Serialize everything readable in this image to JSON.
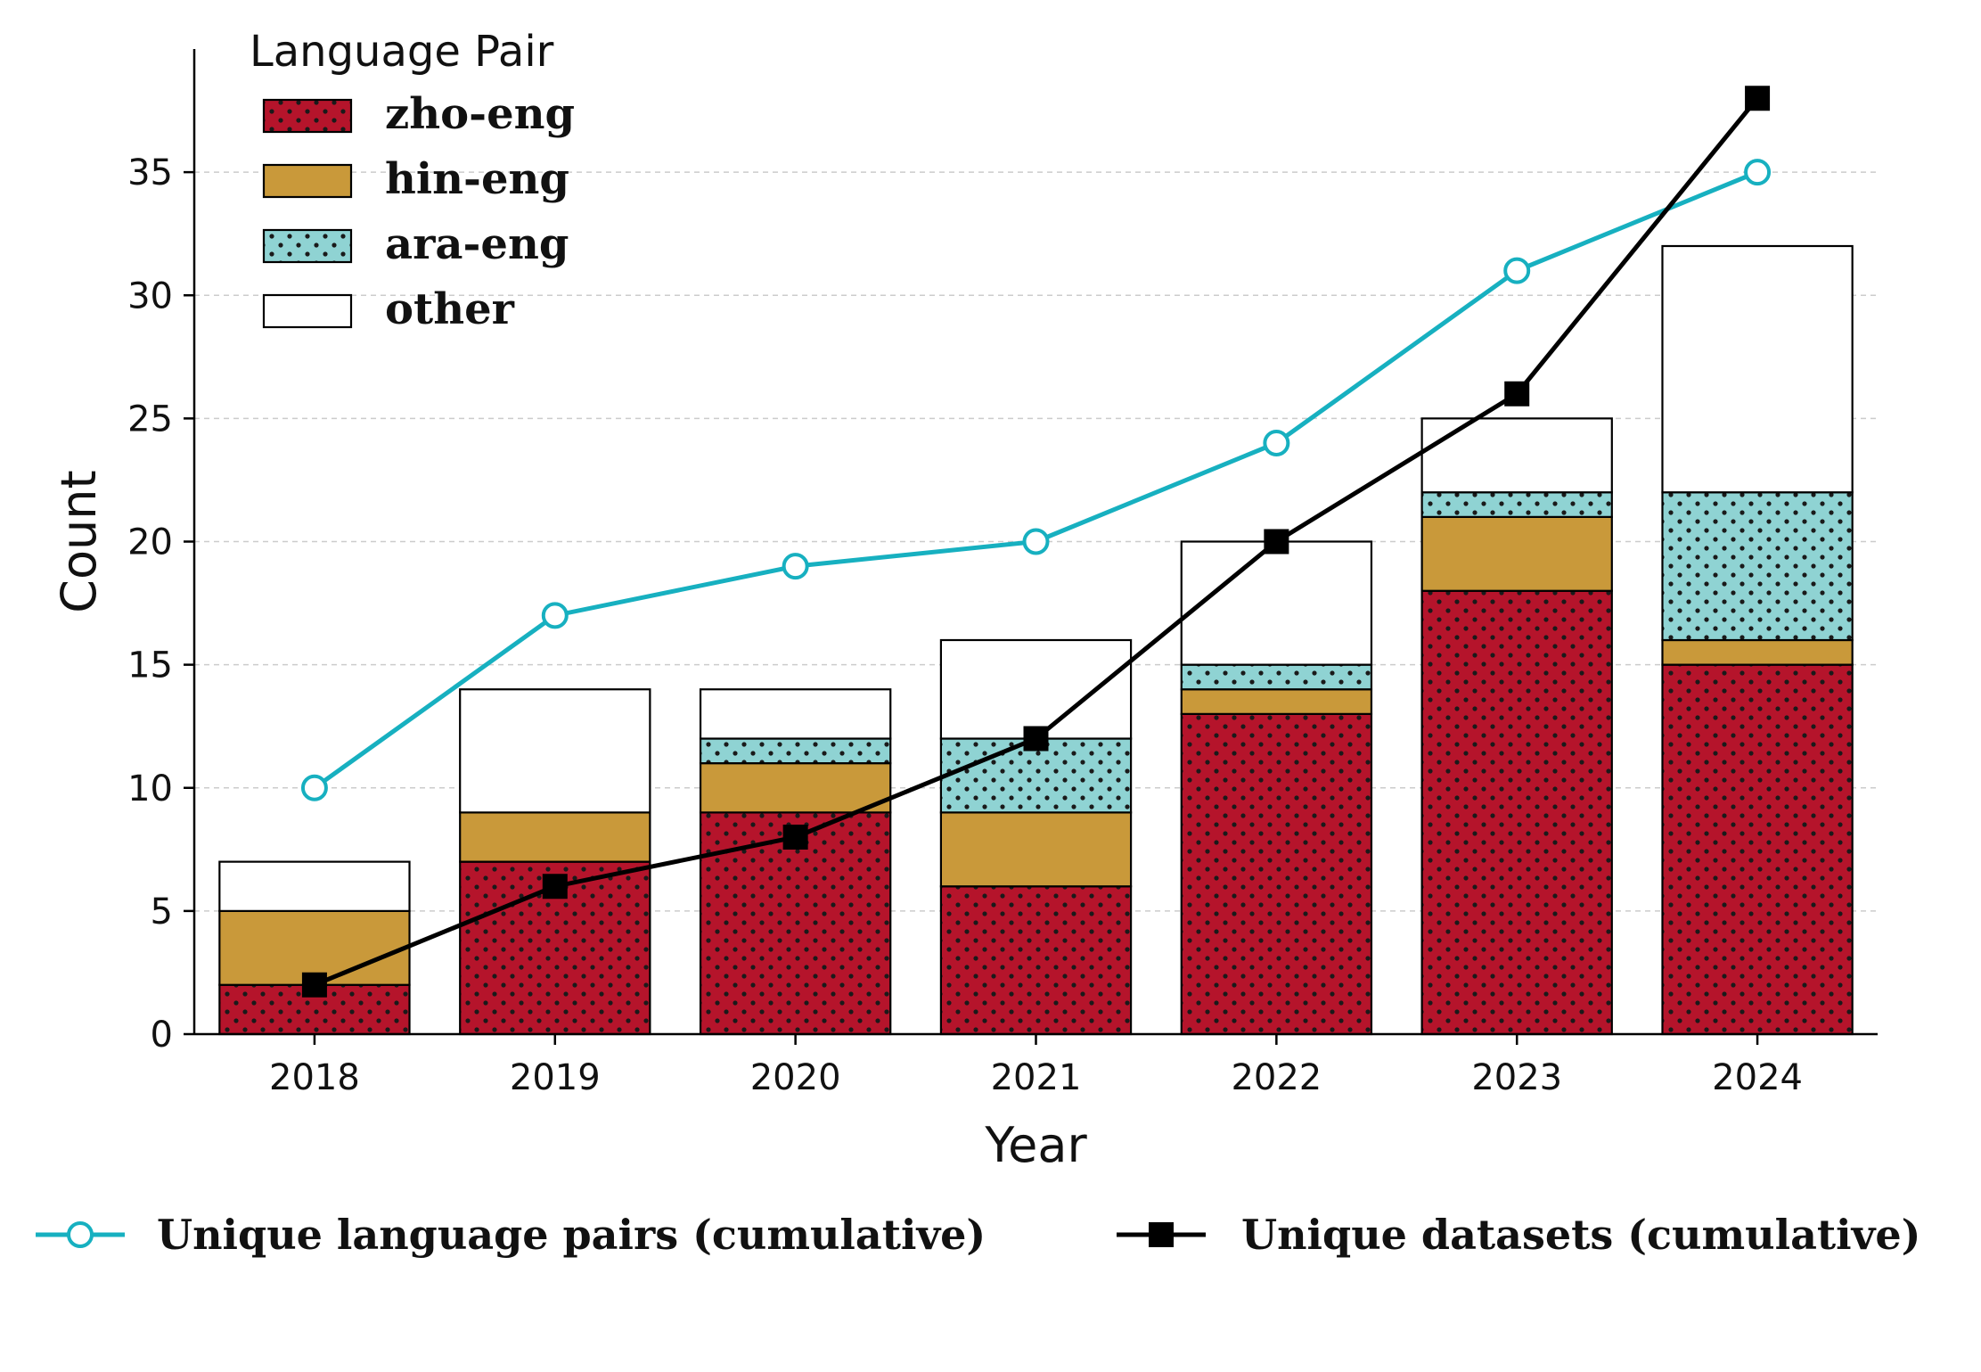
{
  "chart_data": {
    "type": "bar",
    "stacked": true,
    "categories": [
      "2018",
      "2019",
      "2020",
      "2021",
      "2022",
      "2023",
      "2024"
    ],
    "xlabel": "Year",
    "ylabel": "Count",
    "ylim": [
      0,
      40
    ],
    "yticks": [
      0,
      5,
      10,
      15,
      20,
      25,
      30,
      35
    ],
    "grid": "horizontal-dashed",
    "legend_title": "Language Pair",
    "legend_placement": "top-left",
    "series": [
      {
        "name": "zho-eng",
        "values": [
          2,
          7,
          9,
          6,
          13,
          18,
          15
        ],
        "color": "#b5142b",
        "pattern": "dots"
      },
      {
        "name": "hin-eng",
        "values": [
          3,
          2,
          2,
          3,
          1,
          3,
          1
        ],
        "color": "#c9993a",
        "pattern": "none"
      },
      {
        "name": "ara-eng",
        "values": [
          0,
          0,
          1,
          3,
          1,
          1,
          6
        ],
        "color": "#8fd3d3",
        "pattern": "dots"
      },
      {
        "name": "other",
        "values": [
          2,
          5,
          2,
          4,
          5,
          3,
          10
        ],
        "color": "#ffffff",
        "pattern": "none"
      }
    ],
    "lines": [
      {
        "name": "Unique language pairs (cumulative)",
        "values": [
          10,
          17,
          19,
          20,
          24,
          31,
          35
        ],
        "color": "#17b0c0",
        "marker": "open-circle"
      },
      {
        "name": "Unique datasets (cumulative)",
        "values": [
          2,
          6,
          8,
          12,
          20,
          26,
          38
        ],
        "color": "#000000",
        "marker": "filled-square"
      }
    ],
    "bottom_legend_placement": "below-chart"
  }
}
